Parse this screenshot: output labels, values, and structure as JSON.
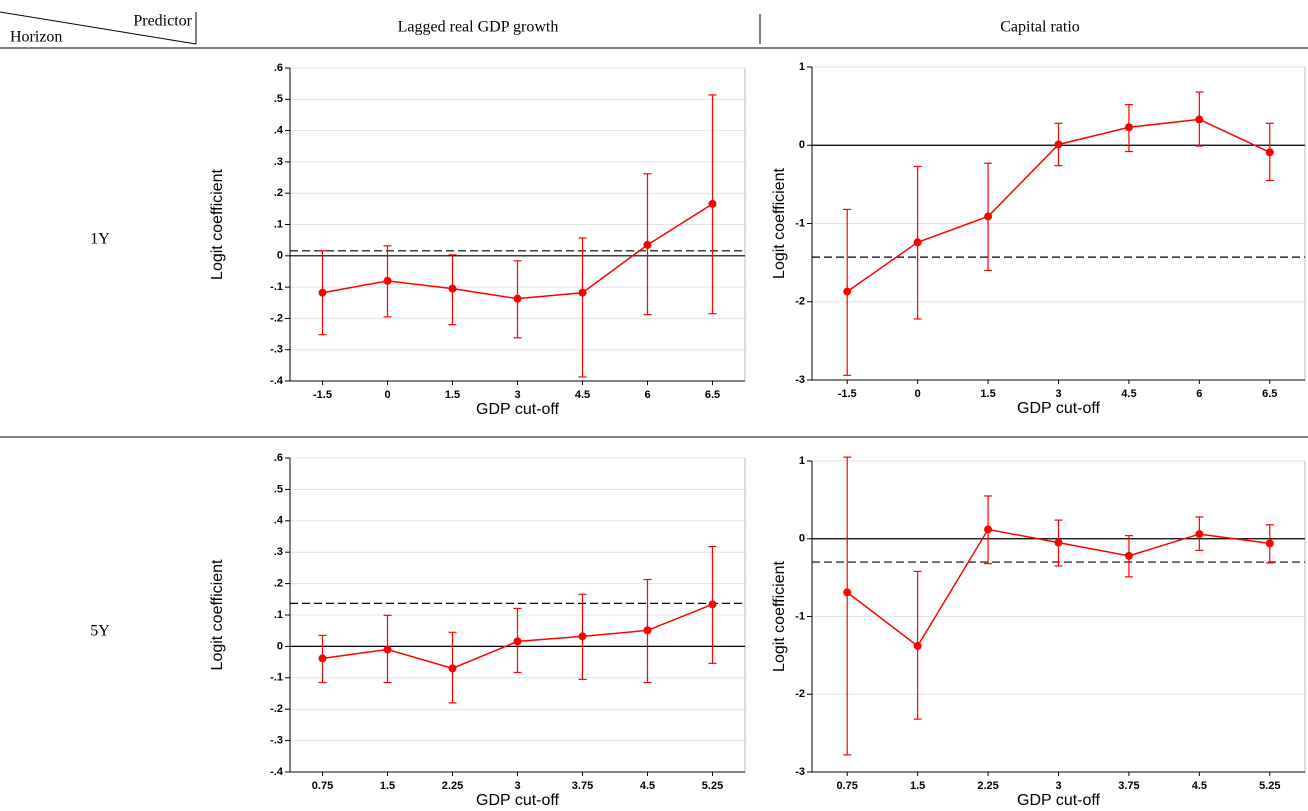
{
  "header": {
    "corner_top": "Predictor",
    "corner_bottom": "Horizon",
    "columns": [
      "Lagged real GDP growth",
      "Capital ratio"
    ],
    "rows": [
      "1Y",
      "5Y"
    ]
  },
  "chart_data": [
    {
      "type": "errorbar-line",
      "ylabel": "Logit coefficient",
      "xlabel": "GDP cut-off",
      "color": "#ff0000",
      "categories": [
        "-1.5",
        "0",
        "1.5",
        "3",
        "4.5",
        "6",
        "6.5"
      ],
      "values": [
        -0.118,
        -0.08,
        -0.105,
        -0.137,
        -0.118,
        0.035,
        0.166
      ],
      "lower": [
        -0.252,
        -0.195,
        -0.22,
        -0.262,
        -0.387,
        -0.188,
        -0.185
      ],
      "upper": [
        0.016,
        0.032,
        0.003,
        -0.016,
        0.057,
        0.262,
        0.514
      ],
      "reference_lines": [
        {
          "value": 0,
          "style": "solid"
        },
        {
          "value": 0.016,
          "style": "dashed"
        }
      ],
      "ylim": [
        -0.4,
        0.6
      ],
      "yticks": [
        {
          "value": -0.4,
          "label": "-.4"
        },
        {
          "value": -0.3,
          "label": "-.3"
        },
        {
          "value": -0.2,
          "label": "-.2"
        },
        {
          "value": -0.1,
          "label": "-.1"
        },
        0,
        {
          "value": 0.1,
          "label": ".1"
        },
        {
          "value": 0.2,
          "label": ".2"
        },
        {
          "value": 0.3,
          "label": ".3"
        },
        {
          "value": 0.4,
          "label": ".4"
        },
        {
          "value": 0.5,
          "label": ".5"
        },
        {
          "value": 0.6,
          "label": ".6"
        }
      ],
      "grid": true
    },
    {
      "type": "errorbar-line",
      "ylabel": "Logit coefficient",
      "xlabel": "GDP cut-off",
      "color": "#ff0000",
      "categories": [
        "-1.5",
        "0",
        "1.5",
        "3",
        "4.5",
        "6",
        "6.5"
      ],
      "values": [
        -1.87,
        -1.24,
        -0.91,
        0.01,
        0.23,
        0.33,
        -0.09
      ],
      "lower": [
        -2.94,
        -2.22,
        -1.6,
        -0.26,
        -0.08,
        -0.01,
        -0.45
      ],
      "upper": [
        -0.82,
        -0.27,
        -0.23,
        0.28,
        0.52,
        0.68,
        0.28
      ],
      "reference_lines": [
        {
          "value": 0,
          "style": "solid"
        },
        {
          "value": -1.43,
          "style": "dashed"
        }
      ],
      "ylim": [
        -3,
        1
      ],
      "yticks": [
        -3,
        -2,
        -1,
        0,
        1
      ],
      "grid": true
    },
    {
      "type": "errorbar-line",
      "ylabel": "Logit coefficient",
      "xlabel": "GDP cut-off",
      "color": "#ff0000",
      "categories": [
        "0.75",
        "1.5",
        "2.25",
        "3",
        "3.75",
        "4.5",
        "5.25"
      ],
      "values": [
        -0.038,
        -0.01,
        -0.07,
        0.016,
        0.032,
        0.051,
        0.134
      ],
      "lower": [
        -0.115,
        -0.115,
        -0.18,
        -0.083,
        -0.105,
        -0.115,
        -0.054
      ],
      "upper": [
        0.035,
        0.099,
        0.045,
        0.121,
        0.166,
        0.213,
        0.318
      ],
      "reference_lines": [
        {
          "value": 0,
          "style": "solid"
        },
        {
          "value": 0.137,
          "style": "dashed"
        }
      ],
      "ylim": [
        -0.4,
        0.6
      ],
      "yticks": [
        {
          "value": -0.4,
          "label": "-.4"
        },
        {
          "value": -0.3,
          "label": "-.3"
        },
        {
          "value": -0.2,
          "label": "-.2"
        },
        {
          "value": -0.1,
          "label": "-.1"
        },
        0,
        {
          "value": 0.1,
          "label": ".1"
        },
        {
          "value": 0.2,
          "label": ".2"
        },
        {
          "value": 0.3,
          "label": ".3"
        },
        {
          "value": 0.4,
          "label": ".4"
        },
        {
          "value": 0.5,
          "label": ".5"
        },
        {
          "value": 0.6,
          "label": ".6"
        }
      ],
      "grid": true
    },
    {
      "type": "errorbar-line",
      "ylabel": "Logit coefficient",
      "xlabel": "GDP cut-off",
      "color": "#ff0000",
      "categories": [
        "0.75",
        "1.5",
        "2.25",
        "3",
        "3.75",
        "4.5",
        "5.25"
      ],
      "values": [
        -0.69,
        -1.38,
        0.12,
        -0.05,
        -0.22,
        0.06,
        -0.06
      ],
      "lower": [
        -2.78,
        -2.32,
        -0.32,
        -0.35,
        -0.49,
        -0.15,
        -0.31
      ],
      "upper": [
        1.05,
        -0.42,
        0.55,
        0.24,
        0.04,
        0.28,
        0.18
      ],
      "reference_lines": [
        {
          "value": 0,
          "style": "solid"
        },
        {
          "value": -0.3,
          "style": "dashed"
        }
      ],
      "ylim": [
        -3,
        1
      ],
      "yticks": [
        -3,
        -2,
        -1,
        0,
        1
      ],
      "grid": true
    }
  ]
}
